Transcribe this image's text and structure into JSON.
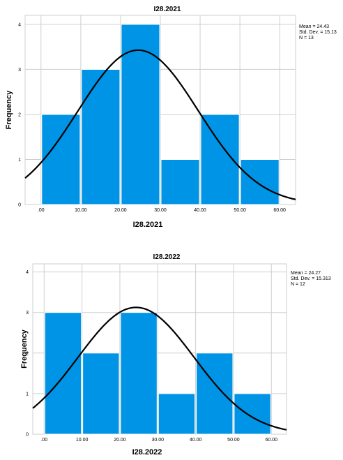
{
  "chart_data": [
    {
      "type": "bar",
      "title": "I28.2021",
      "xlabel": "I28.2021",
      "ylabel": "Frequency",
      "bins": [
        [
          0,
          10
        ],
        [
          10,
          20
        ],
        [
          20,
          30
        ],
        [
          30,
          40
        ],
        [
          40,
          50
        ],
        [
          50,
          60
        ]
      ],
      "values": [
        2,
        3,
        4,
        1,
        2,
        1
      ],
      "x_ticks": [
        ".00",
        "10.00",
        "20.00",
        "30.00",
        "40.00",
        "50.00",
        "60.00"
      ],
      "y_ticks": [
        "0",
        "1",
        "2",
        "3",
        "4"
      ],
      "xlim": [
        -4,
        64
      ],
      "ylim": [
        0,
        4.2
      ],
      "normal_curve": {
        "mean": 24.43,
        "sd": 15.13,
        "n": 13,
        "bin_width": 10
      },
      "stats": [
        "Mean = 24.43",
        "Std. Dev. = 15.13",
        "N = 13"
      ],
      "bar_color": "#0094e6",
      "grid": true
    },
    {
      "type": "bar",
      "title": "I28.2022",
      "xlabel": "I28.2022",
      "ylabel": "Frequency",
      "bins": [
        [
          0,
          10
        ],
        [
          10,
          20
        ],
        [
          20,
          30
        ],
        [
          30,
          40
        ],
        [
          40,
          50
        ],
        [
          50,
          60
        ]
      ],
      "values": [
        3,
        2,
        3,
        1,
        2,
        1
      ],
      "x_ticks": [
        ".00",
        "10.00",
        "20.00",
        "30.00",
        "40.00",
        "50.00",
        "60.00"
      ],
      "y_ticks": [
        "0",
        "1",
        "2",
        "3",
        "4"
      ],
      "xlim": [
        -3,
        64
      ],
      "ylim": [
        0,
        4.2
      ],
      "normal_curve": {
        "mean": 24.27,
        "sd": 15.313,
        "n": 12,
        "bin_width": 10
      },
      "stats": [
        "Mean = 24.27",
        "Std. Dev. = 15.313",
        "N = 12"
      ],
      "bar_color": "#0094e6",
      "grid": true
    }
  ]
}
